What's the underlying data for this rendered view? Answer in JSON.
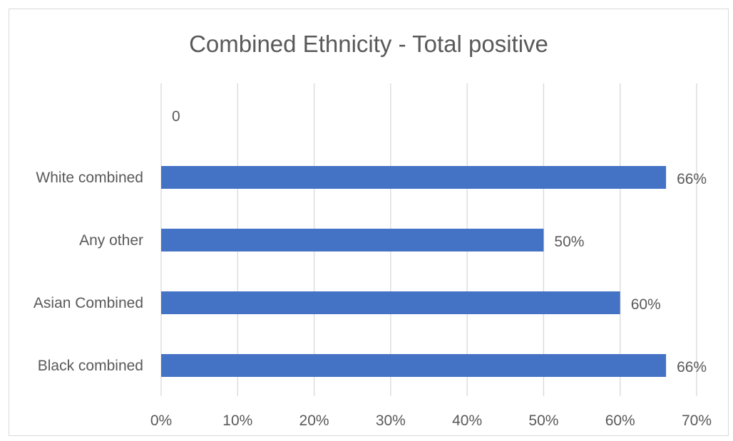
{
  "chart_data": {
    "type": "bar",
    "orientation": "horizontal",
    "title": "Combined Ethnicity - Total positive",
    "categories": [
      "0",
      "White combined",
      "Any other",
      "Asian Combined",
      "Black combined"
    ],
    "values": [
      0,
      0.66,
      0.5,
      0.6,
      0.66
    ],
    "data_labels": [
      "0",
      "66%",
      "50%",
      "60%",
      "66%"
    ],
    "category_label_visible": [
      false,
      true,
      true,
      true,
      true
    ],
    "xlim": [
      0,
      0.7
    ],
    "x_ticks": [
      0,
      0.1,
      0.2,
      0.3,
      0.4,
      0.5,
      0.6,
      0.7
    ],
    "x_tick_labels": [
      "0%",
      "10%",
      "20%",
      "30%",
      "40%",
      "50%",
      "60%",
      "70%"
    ],
    "grid": "vertical",
    "legend": "none",
    "colors": {
      "bar": "#4472c4",
      "grid": "#d9d9d9",
      "text": "#595959"
    }
  }
}
